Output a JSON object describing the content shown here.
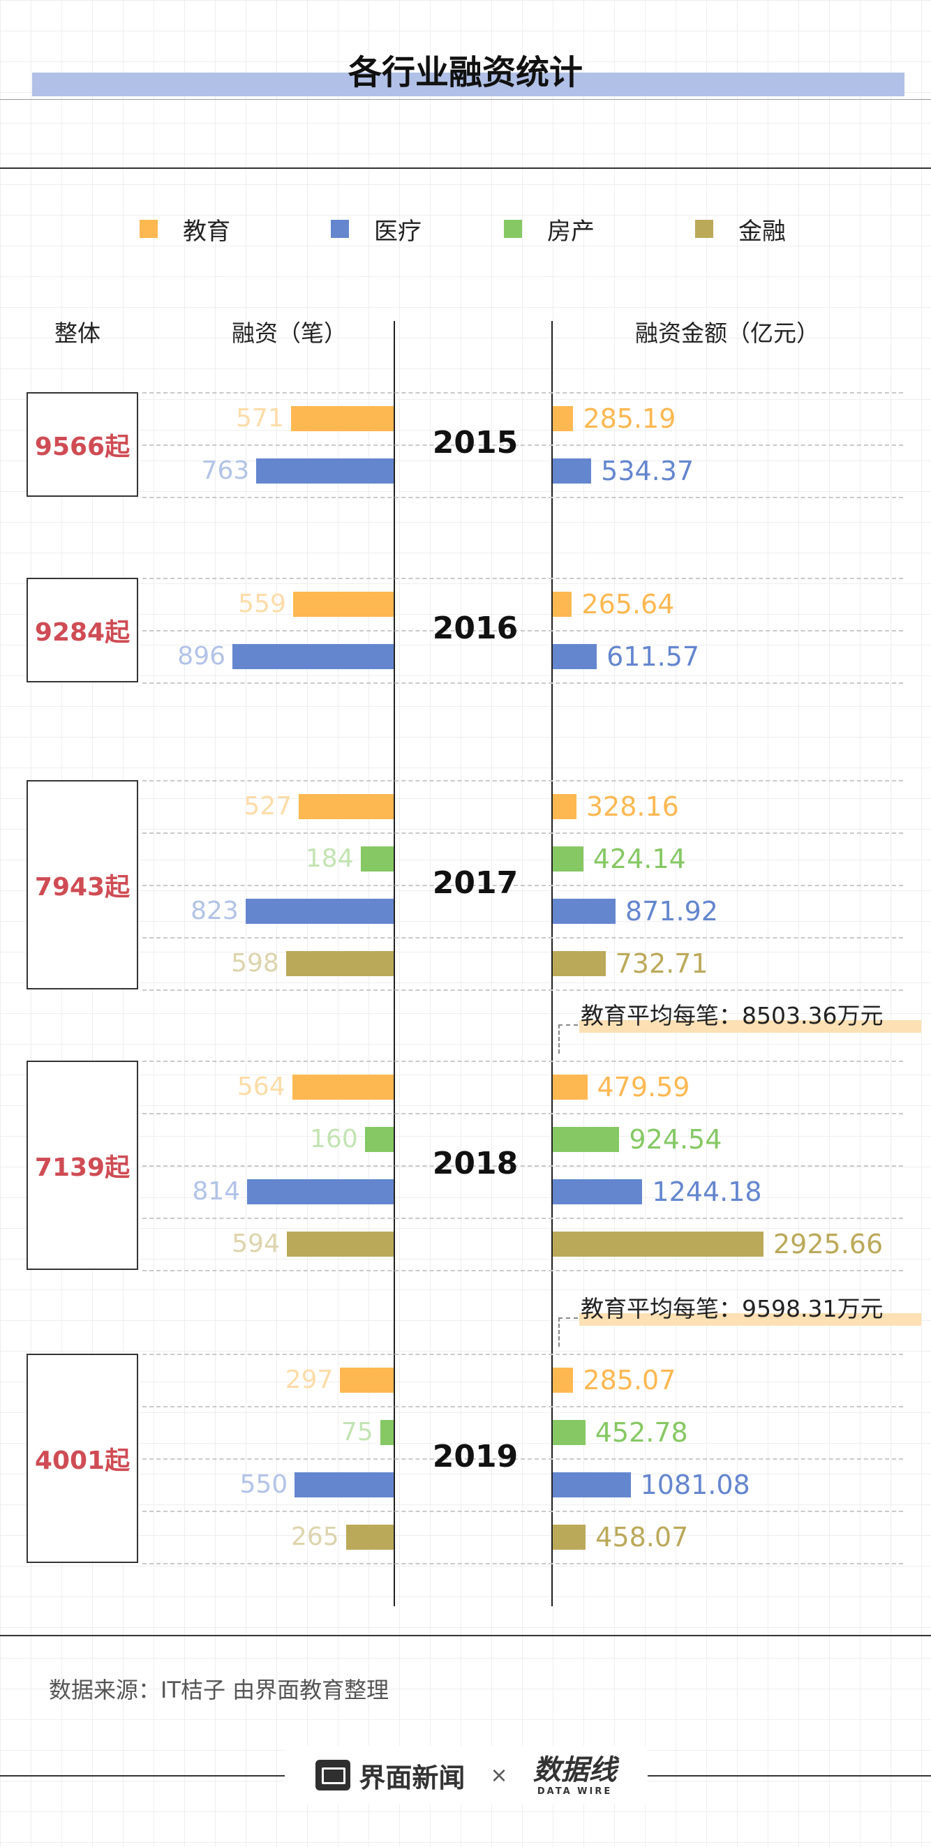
{
  "chart_data": {
    "type": "bar",
    "title": "各行业融资统计",
    "legend": [
      {
        "name": "教育",
        "color": "#fdb851"
      },
      {
        "name": "医疗",
        "color": "#6486ce"
      },
      {
        "name": "房产",
        "color": "#86c864"
      },
      {
        "name": "金融",
        "color": "#bba95a"
      }
    ],
    "headers": {
      "total": "整体",
      "count": "融资（笔）",
      "amount": "融资金额（亿元）"
    },
    "count_scale_max": 900,
    "amount_scale_max": 2925.66,
    "years": [
      {
        "year": "2015",
        "total": "9566起",
        "rows": [
          {
            "industry": "教育",
            "count": 571,
            "amount": 285.19
          },
          {
            "industry": "医疗",
            "count": 763,
            "amount": 534.37
          }
        ]
      },
      {
        "year": "2016",
        "total": "9284起",
        "rows": [
          {
            "industry": "教育",
            "count": 559,
            "amount": 265.64
          },
          {
            "industry": "医疗",
            "count": 896,
            "amount": 611.57
          }
        ]
      },
      {
        "year": "2017",
        "total": "7943起",
        "rows": [
          {
            "industry": "教育",
            "count": 527,
            "amount": 328.16
          },
          {
            "industry": "房产",
            "count": 184,
            "amount": 424.14
          },
          {
            "industry": "医疗",
            "count": 823,
            "amount": 871.92
          },
          {
            "industry": "金融",
            "count": 598,
            "amount": 732.71
          }
        ]
      },
      {
        "year": "2018",
        "total": "7139起",
        "note": "教育平均每笔：8503.36万元",
        "rows": [
          {
            "industry": "教育",
            "count": 564,
            "amount": 479.59
          },
          {
            "industry": "房产",
            "count": 160,
            "amount": 924.54
          },
          {
            "industry": "医疗",
            "count": 814,
            "amount": 1244.18
          },
          {
            "industry": "金融",
            "count": 594,
            "amount": 2925.66
          }
        ]
      },
      {
        "year": "2019",
        "total": "4001起",
        "note": "教育平均每笔：9598.31万元",
        "rows": [
          {
            "industry": "教育",
            "count": 297,
            "amount": 285.07
          },
          {
            "industry": "房产",
            "count": 75,
            "amount": 452.78
          },
          {
            "industry": "医疗",
            "count": 550,
            "amount": 1081.08
          },
          {
            "industry": "金融",
            "count": 265,
            "amount": 458.07
          }
        ]
      }
    ]
  },
  "source": "数据来源：IT桔子 由界面教育整理",
  "brand": {
    "name": "界面新闻",
    "times": "×",
    "partner_cn": "数据线",
    "partner_en": "DATA WIRE"
  }
}
